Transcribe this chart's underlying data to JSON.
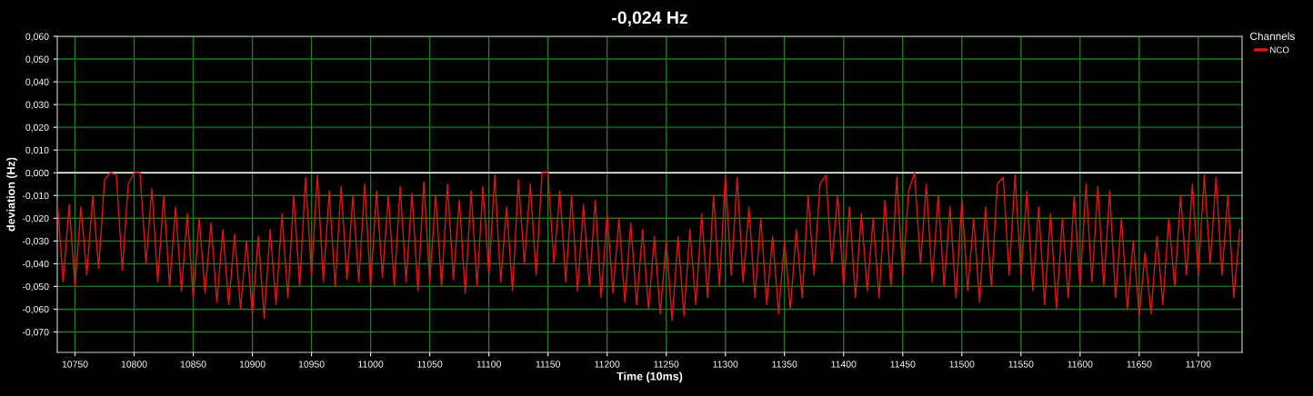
{
  "chart_data": {
    "type": "line",
    "title": "-0,024 Hz",
    "xlabel": "Time (10ms)",
    "ylabel": "deviation (Hz)",
    "legend_title": "Channels",
    "legend": "top right",
    "grid": true,
    "marker": "none",
    "line_style": "solid",
    "xlim": [
      10735,
      11737
    ],
    "ylim": [
      -0.079,
      0.06
    ],
    "xticks": [
      10750,
      10800,
      10850,
      10900,
      10950,
      11000,
      11050,
      11100,
      11150,
      11200,
      11250,
      11300,
      11350,
      11400,
      11450,
      11500,
      11550,
      11600,
      11650,
      11700
    ],
    "yticks": [
      {
        "value": 0.06,
        "label": "0,060"
      },
      {
        "value": 0.05,
        "label": "0,050"
      },
      {
        "value": 0.04,
        "label": "0,040"
      },
      {
        "value": 0.03,
        "label": "0,030"
      },
      {
        "value": 0.02,
        "label": "0,020"
      },
      {
        "value": 0.01,
        "label": "0,010"
      },
      {
        "value": 0,
        "label": "0,000"
      },
      {
        "value": -0.01,
        "label": "-0,010"
      },
      {
        "value": -0.02,
        "label": "-0,020"
      },
      {
        "value": -0.03,
        "label": "-0,030"
      },
      {
        "value": -0.04,
        "label": "-0,040"
      },
      {
        "value": -0.05,
        "label": "-0,050"
      },
      {
        "value": -0.06,
        "label": "-0,060"
      },
      {
        "value": -0.07,
        "label": "-0,070"
      }
    ],
    "ref_lines": [
      {
        "axis": "y",
        "value": 0,
        "color": "#ffffff"
      }
    ],
    "x": [
      10735,
      10740,
      10745,
      10750,
      10755,
      10760,
      10765,
      10770,
      10775,
      10780,
      10785,
      10790,
      10795,
      10800,
      10805,
      10810,
      10815,
      10820,
      10825,
      10830,
      10835,
      10840,
      10845,
      10850,
      10855,
      10860,
      10865,
      10870,
      10875,
      10880,
      10885,
      10890,
      10895,
      10900,
      10905,
      10910,
      10915,
      10920,
      10925,
      10930,
      10935,
      10940,
      10945,
      10950,
      10955,
      10960,
      10965,
      10970,
      10975,
      10980,
      10985,
      10990,
      10995,
      11000,
      11005,
      11010,
      11015,
      11020,
      11025,
      11030,
      11035,
      11040,
      11045,
      11050,
      11055,
      11060,
      11065,
      11070,
      11075,
      11080,
      11085,
      11090,
      11095,
      11100,
      11105,
      11110,
      11115,
      11120,
      11125,
      11130,
      11135,
      11140,
      11145,
      11150,
      11155,
      11160,
      11165,
      11170,
      11175,
      11180,
      11185,
      11190,
      11195,
      11200,
      11205,
      11210,
      11215,
      11220,
      11225,
      11230,
      11235,
      11240,
      11245,
      11250,
      11255,
      11260,
      11265,
      11270,
      11275,
      11280,
      11285,
      11290,
      11295,
      11300,
      11305,
      11310,
      11315,
      11320,
      11325,
      11330,
      11335,
      11340,
      11345,
      11350,
      11355,
      11360,
      11365,
      11370,
      11375,
      11380,
      11385,
      11390,
      11395,
      11400,
      11405,
      11410,
      11415,
      11420,
      11425,
      11430,
      11435,
      11440,
      11445,
      11450,
      11455,
      11460,
      11465,
      11470,
      11475,
      11480,
      11485,
      11490,
      11495,
      11500,
      11505,
      11510,
      11515,
      11520,
      11525,
      11530,
      11535,
      11540,
      11545,
      11550,
      11555,
      11560,
      11565,
      11570,
      11575,
      11580,
      11585,
      11590,
      11595,
      11600,
      11605,
      11610,
      11615,
      11620,
      11625,
      11630,
      11635,
      11640,
      11645,
      11650,
      11655,
      11660,
      11665,
      11670,
      11675,
      11680,
      11685,
      11690,
      11695,
      11700,
      11705,
      11710,
      11715,
      11720,
      11725,
      11730,
      11735
    ],
    "series": [
      {
        "name": "NCO",
        "color": "#e01414",
        "values": [
          -0.012,
          -0.048,
          -0.014,
          -0.05,
          -0.015,
          -0.045,
          -0.01,
          -0.042,
          -0.003,
          0,
          -0.001,
          -0.043,
          -0.005,
          0,
          0,
          -0.04,
          -0.007,
          -0.048,
          -0.01,
          -0.05,
          -0.015,
          -0.052,
          -0.018,
          -0.055,
          -0.02,
          -0.053,
          -0.022,
          -0.057,
          -0.025,
          -0.058,
          -0.027,
          -0.06,
          -0.03,
          -0.062,
          -0.028,
          -0.064,
          -0.025,
          -0.058,
          -0.018,
          -0.055,
          -0.01,
          -0.05,
          -0.002,
          -0.045,
          -0.001,
          -0.048,
          -0.008,
          -0.05,
          -0.006,
          -0.047,
          -0.01,
          -0.048,
          -0.005,
          -0.05,
          -0.008,
          -0.046,
          -0.01,
          -0.05,
          -0.006,
          -0.048,
          -0.009,
          -0.052,
          -0.004,
          -0.048,
          -0.01,
          -0.05,
          -0.005,
          -0.047,
          -0.012,
          -0.053,
          -0.008,
          -0.05,
          -0.006,
          -0.045,
          -0.001,
          -0.048,
          -0.015,
          -0.052,
          -0.003,
          -0.04,
          -0.005,
          -0.045,
          0,
          0,
          -0.04,
          -0.008,
          -0.048,
          -0.01,
          -0.052,
          -0.014,
          -0.05,
          -0.012,
          -0.055,
          -0.018,
          -0.053,
          -0.02,
          -0.057,
          -0.022,
          -0.058,
          -0.025,
          -0.06,
          -0.028,
          -0.062,
          -0.03,
          -0.065,
          -0.028,
          -0.063,
          -0.025,
          -0.058,
          -0.018,
          -0.055,
          -0.01,
          -0.05,
          -0.001,
          -0.045,
          -0.002,
          -0.048,
          -0.015,
          -0.055,
          -0.02,
          -0.058,
          -0.028,
          -0.062,
          -0.03,
          -0.06,
          -0.025,
          -0.055,
          -0.01,
          -0.045,
          -0.005,
          -0.001,
          -0.04,
          -0.01,
          -0.05,
          -0.015,
          -0.055,
          -0.018,
          -0.052,
          -0.02,
          -0.055,
          -0.012,
          -0.05,
          -0.002,
          -0.045,
          -0.008,
          0,
          -0.04,
          -0.005,
          -0.048,
          -0.01,
          -0.05,
          -0.015,
          -0.055,
          -0.012,
          -0.052,
          -0.02,
          -0.057,
          -0.015,
          -0.05,
          -0.005,
          -0.002,
          -0.045,
          -0.001,
          -0.045,
          -0.008,
          -0.052,
          -0.015,
          -0.058,
          -0.018,
          -0.06,
          -0.02,
          -0.055,
          -0.01,
          -0.05,
          -0.005,
          -0.048,
          -0.006,
          -0.05,
          -0.008,
          -0.055,
          -0.02,
          -0.06,
          -0.03,
          -0.063,
          -0.035,
          -0.062,
          -0.028,
          -0.058,
          -0.02,
          -0.05,
          -0.01,
          -0.045,
          -0.005,
          -0.045,
          -0.001,
          -0.04,
          -0.002,
          -0.045,
          -0.01,
          -0.055,
          -0.025
        ]
      }
    ]
  }
}
